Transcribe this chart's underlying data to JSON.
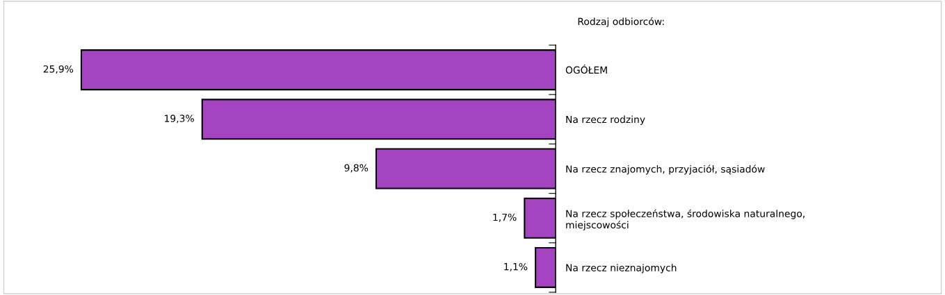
{
  "chart_data": {
    "type": "bar",
    "orientation": "horizontal",
    "title": "Rodzaj odbiorców:",
    "categories": [
      "OGÓŁEM",
      "Na rzecz rodziny",
      "Na rzecz znajomych, przyjaciół, sąsiadów",
      "Na rzecz społeczeństwa, środowiska naturalnego,\nmiejscowości",
      "Na rzecz nieznajomych"
    ],
    "values": [
      25.9,
      19.3,
      9.8,
      1.7,
      1.1
    ],
    "value_labels": [
      "25,9%",
      "19,3%",
      "9,8%",
      "1,7%",
      "1,1%"
    ],
    "color": "#a444c0",
    "xlim": [
      30,
      0
    ],
    "grid": false,
    "legend": false
  }
}
